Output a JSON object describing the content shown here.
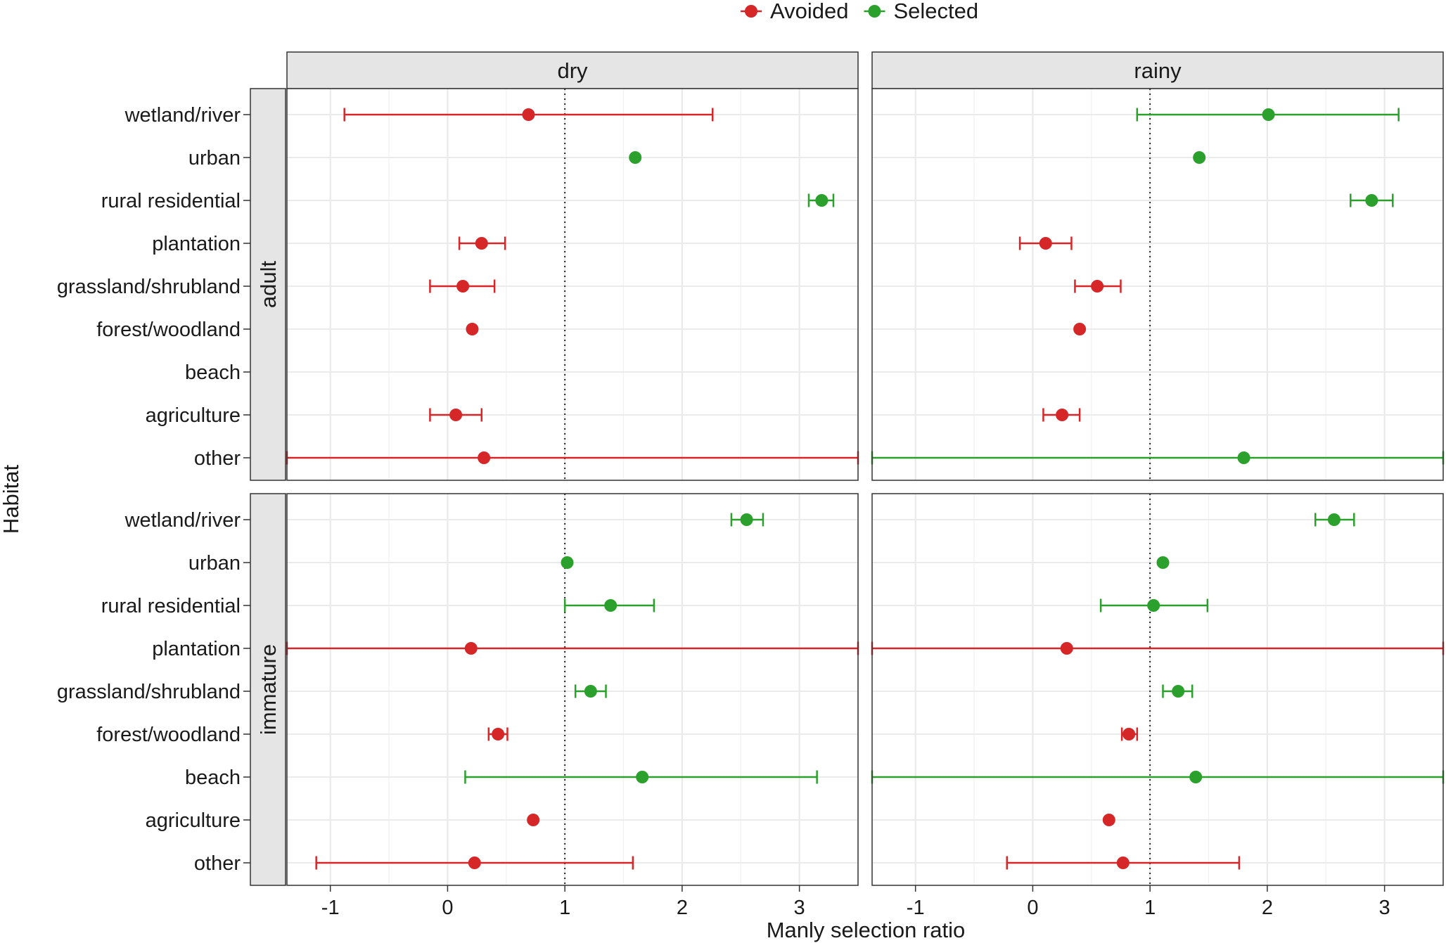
{
  "chart_data": {
    "type": "scatter",
    "subtype": "dot-and-whisker",
    "xlabel": "Manly selection ratio",
    "ylabel": "Habitat",
    "x_ticks": [
      "-1",
      "0",
      "1",
      "2",
      "3"
    ],
    "xlim": [
      -1.37,
      3.5
    ],
    "reference_line_x": 1,
    "grid": true,
    "legend": {
      "position": "top",
      "entries": [
        {
          "key": "avoided",
          "label": "Avoided",
          "color": "#d62728"
        },
        {
          "key": "selected",
          "label": "Selected",
          "color": "#2ca02c"
        }
      ]
    },
    "columns": [
      "dry",
      "rainy"
    ],
    "rows": [
      "adult",
      "immature"
    ],
    "categories": [
      "wetland/river",
      "urban",
      "rural residential",
      "plantation",
      "grassland/shrubland",
      "forest/woodland",
      "beach",
      "agriculture",
      "other"
    ],
    "panels": [
      {
        "column": "dry",
        "row": "adult",
        "points": [
          {
            "habitat": "wetland/river",
            "estimate": 0.69,
            "lower": -0.88,
            "upper": 2.26,
            "status": "avoided"
          },
          {
            "habitat": "urban",
            "estimate": 1.6,
            "lower": null,
            "upper": null,
            "status": "selected"
          },
          {
            "habitat": "rural residential",
            "estimate": 3.19,
            "lower": 3.08,
            "upper": 3.29,
            "status": "selected"
          },
          {
            "habitat": "plantation",
            "estimate": 0.29,
            "lower": 0.1,
            "upper": 0.49,
            "status": "avoided"
          },
          {
            "habitat": "grassland/shrubland",
            "estimate": 0.13,
            "lower": -0.15,
            "upper": 0.4,
            "status": "avoided"
          },
          {
            "habitat": "forest/woodland",
            "estimate": 0.21,
            "lower": null,
            "upper": null,
            "status": "avoided"
          },
          {
            "habitat": "agriculture",
            "estimate": 0.07,
            "lower": -0.15,
            "upper": 0.29,
            "status": "avoided"
          },
          {
            "habitat": "other",
            "estimate": 0.31,
            "lower": -1.37,
            "upper": 3.5,
            "status": "avoided"
          }
        ]
      },
      {
        "column": "rainy",
        "row": "adult",
        "points": [
          {
            "habitat": "wetland/river",
            "estimate": 2.01,
            "lower": 0.89,
            "upper": 3.12,
            "status": "selected"
          },
          {
            "habitat": "urban",
            "estimate": 1.42,
            "lower": null,
            "upper": null,
            "status": "selected"
          },
          {
            "habitat": "rural residential",
            "estimate": 2.89,
            "lower": 2.71,
            "upper": 3.07,
            "status": "selected"
          },
          {
            "habitat": "plantation",
            "estimate": 0.11,
            "lower": -0.11,
            "upper": 0.33,
            "status": "avoided"
          },
          {
            "habitat": "grassland/shrubland",
            "estimate": 0.55,
            "lower": 0.36,
            "upper": 0.75,
            "status": "avoided"
          },
          {
            "habitat": "forest/woodland",
            "estimate": 0.4,
            "lower": null,
            "upper": null,
            "status": "avoided"
          },
          {
            "habitat": "agriculture",
            "estimate": 0.25,
            "lower": 0.09,
            "upper": 0.4,
            "status": "avoided"
          },
          {
            "habitat": "other",
            "estimate": 1.8,
            "lower": -1.37,
            "upper": 3.5,
            "status": "selected"
          }
        ]
      },
      {
        "column": "dry",
        "row": "immature",
        "points": [
          {
            "habitat": "wetland/river",
            "estimate": 2.55,
            "lower": 2.42,
            "upper": 2.69,
            "status": "selected"
          },
          {
            "habitat": "urban",
            "estimate": 1.02,
            "lower": null,
            "upper": null,
            "status": "selected"
          },
          {
            "habitat": "rural residential",
            "estimate": 1.39,
            "lower": 1.0,
            "upper": 1.76,
            "status": "selected"
          },
          {
            "habitat": "plantation",
            "estimate": 0.2,
            "lower": -1.37,
            "upper": 3.5,
            "status": "avoided"
          },
          {
            "habitat": "grassland/shrubland",
            "estimate": 1.22,
            "lower": 1.09,
            "upper": 1.35,
            "status": "selected"
          },
          {
            "habitat": "forest/woodland",
            "estimate": 0.43,
            "lower": 0.35,
            "upper": 0.51,
            "status": "avoided"
          },
          {
            "habitat": "beach",
            "estimate": 1.66,
            "lower": 0.15,
            "upper": 3.15,
            "status": "selected"
          },
          {
            "habitat": "agriculture",
            "estimate": 0.73,
            "lower": null,
            "upper": null,
            "status": "avoided"
          },
          {
            "habitat": "other",
            "estimate": 0.23,
            "lower": -1.12,
            "upper": 1.58,
            "status": "avoided"
          }
        ]
      },
      {
        "column": "rainy",
        "row": "immature",
        "points": [
          {
            "habitat": "wetland/river",
            "estimate": 2.57,
            "lower": 2.41,
            "upper": 2.74,
            "status": "selected"
          },
          {
            "habitat": "urban",
            "estimate": 1.11,
            "lower": null,
            "upper": null,
            "status": "selected"
          },
          {
            "habitat": "rural residential",
            "estimate": 1.03,
            "lower": 0.58,
            "upper": 1.49,
            "status": "selected"
          },
          {
            "habitat": "plantation",
            "estimate": 0.29,
            "lower": -1.37,
            "upper": 3.5,
            "status": "avoided"
          },
          {
            "habitat": "grassland/shrubland",
            "estimate": 1.24,
            "lower": 1.11,
            "upper": 1.36,
            "status": "selected"
          },
          {
            "habitat": "forest/woodland",
            "estimate": 0.82,
            "lower": 0.76,
            "upper": 0.89,
            "status": "avoided"
          },
          {
            "habitat": "beach",
            "estimate": 1.39,
            "lower": -1.37,
            "upper": 3.5,
            "status": "selected"
          },
          {
            "habitat": "agriculture",
            "estimate": 0.65,
            "lower": null,
            "upper": null,
            "status": "avoided"
          },
          {
            "habitat": "other",
            "estimate": 0.77,
            "lower": -0.22,
            "upper": 1.76,
            "status": "avoided"
          }
        ]
      }
    ]
  }
}
